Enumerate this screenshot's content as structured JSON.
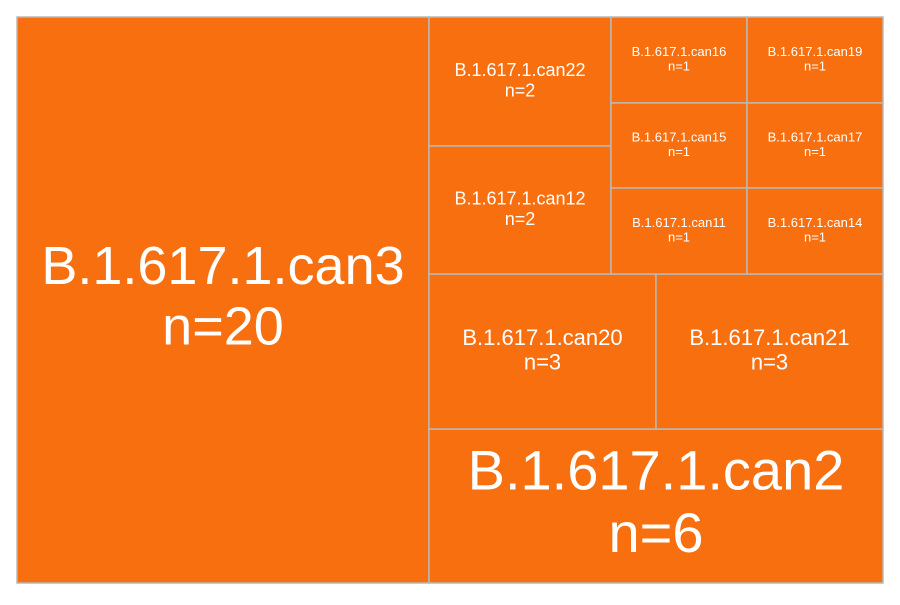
{
  "chart_data": {
    "type": "treemap",
    "fill_color": "#f76f0e",
    "border_color": "#b9b9b9",
    "label_color": "#ffffff",
    "items": [
      {
        "name": "B.1.617.1.can3",
        "n_label": "n=20",
        "value": 20
      },
      {
        "name": "B.1.617.1.can2",
        "n_label": "n=6",
        "value": 6
      },
      {
        "name": "B.1.617.1.can20",
        "n_label": "n=3",
        "value": 3
      },
      {
        "name": "B.1.617.1.can21",
        "n_label": "n=3",
        "value": 3
      },
      {
        "name": "B.1.617.1.can22",
        "n_label": "n=2",
        "value": 2
      },
      {
        "name": "B.1.617.1.can12",
        "n_label": "n=2",
        "value": 2
      },
      {
        "name": "B.1.617.1.can16",
        "n_label": "n=1",
        "value": 1
      },
      {
        "name": "B.1.617.1.can19",
        "n_label": "n=1",
        "value": 1
      },
      {
        "name": "B.1.617.1.can15",
        "n_label": "n=1",
        "value": 1
      },
      {
        "name": "B.1.617.1.can17",
        "n_label": "n=1",
        "value": 1
      },
      {
        "name": "B.1.617.1.can11",
        "n_label": "n=1",
        "value": 1
      },
      {
        "name": "B.1.617.1.can14",
        "n_label": "n=1",
        "value": 1
      }
    ]
  }
}
